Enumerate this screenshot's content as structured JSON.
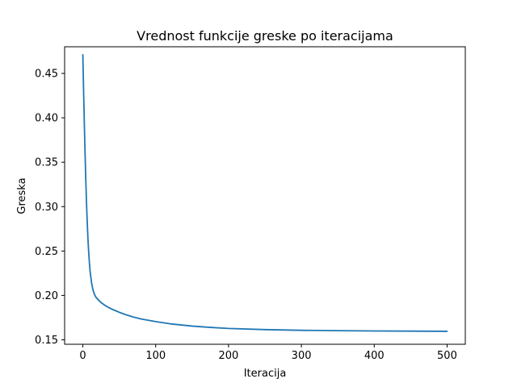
{
  "chart_data": {
    "type": "line",
    "title": "Vrednost funkcije greske po iteracijama",
    "xlabel": "Iteracija",
    "ylabel": "Greska",
    "xlim": [
      -25,
      525
    ],
    "ylim": [
      0.145,
      0.48
    ],
    "xticks": [
      0,
      100,
      200,
      300,
      400,
      500
    ],
    "yticks": [
      0.15,
      0.2,
      0.25,
      0.3,
      0.35,
      0.4,
      0.45
    ],
    "ytick_labels": [
      "0.15",
      "0.20",
      "0.25",
      "0.30",
      "0.35",
      "0.40",
      "0.45"
    ],
    "grid": false,
    "series": [
      {
        "name": "greska",
        "color": "#1f77b4",
        "x": [
          0,
          1,
          2,
          3,
          4,
          5,
          6,
          7,
          8,
          9,
          10,
          12,
          14,
          16,
          18,
          20,
          25,
          30,
          35,
          40,
          50,
          60,
          70,
          80,
          100,
          120,
          150,
          175,
          200,
          250,
          300,
          350,
          400,
          450,
          500
        ],
        "y": [
          0.471,
          0.432,
          0.395,
          0.362,
          0.332,
          0.305,
          0.283,
          0.264,
          0.249,
          0.237,
          0.227,
          0.214,
          0.206,
          0.201,
          0.198,
          0.196,
          0.192,
          0.189,
          0.1865,
          0.1845,
          0.181,
          0.178,
          0.1755,
          0.1735,
          0.1705,
          0.168,
          0.1655,
          0.164,
          0.1628,
          0.1615,
          0.1607,
          0.1603,
          0.16,
          0.1598,
          0.1596
        ]
      }
    ]
  }
}
